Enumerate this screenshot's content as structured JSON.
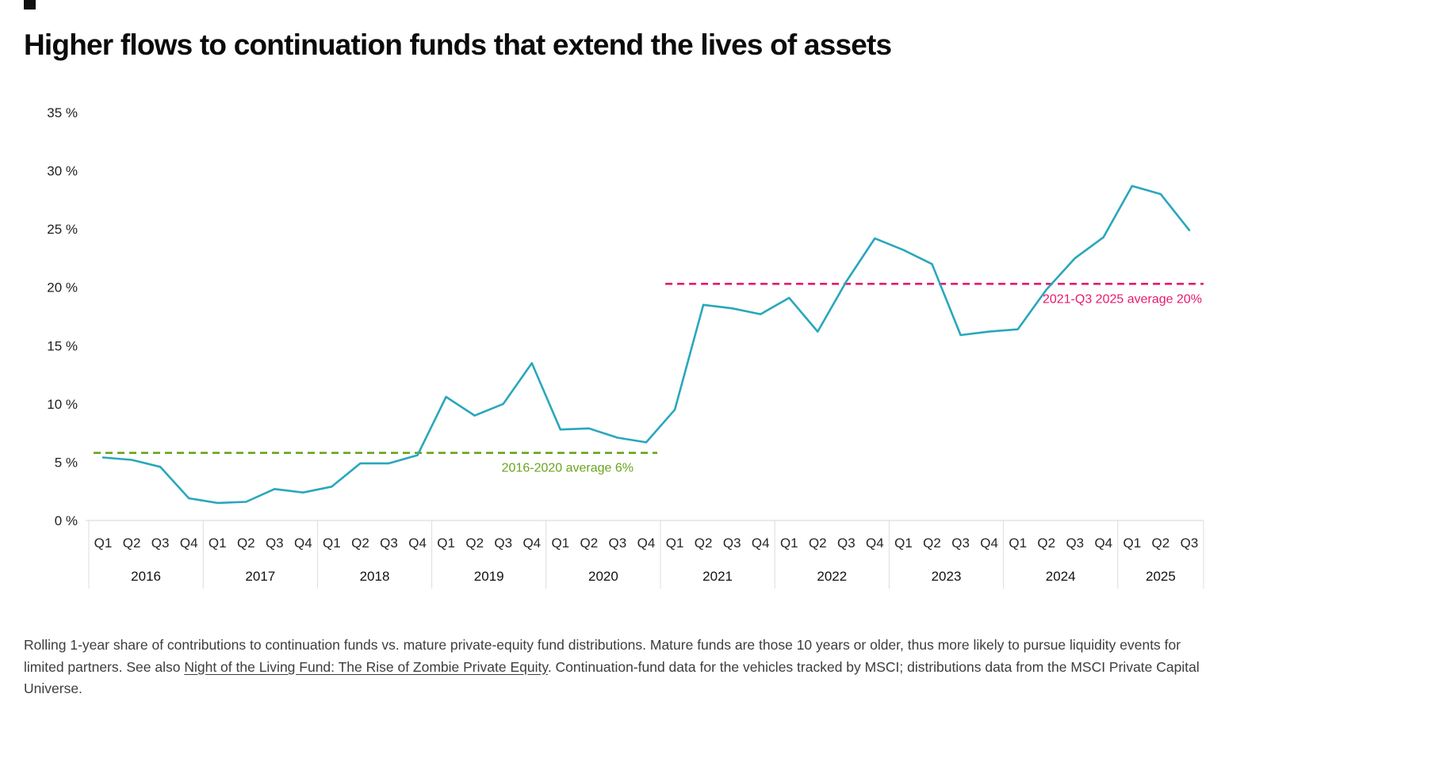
{
  "title": "Higher flows to continuation funds that extend the lives of assets",
  "chart_data": {
    "type": "line",
    "series_name": "Rolling 1-year share of contributions to continuation funds vs. mature fund distributions",
    "line_color": "#29a7bc",
    "ylim": [
      0,
      35
    ],
    "y_ticks": [
      "0 %",
      "5 %",
      "10 %",
      "15 %",
      "20 %",
      "25 %",
      "30 %",
      "35 %"
    ],
    "grid": "off",
    "years": [
      {
        "year": "2016",
        "quarters": [
          "Q1",
          "Q2",
          "Q3",
          "Q4"
        ]
      },
      {
        "year": "2017",
        "quarters": [
          "Q1",
          "Q2",
          "Q3",
          "Q4"
        ]
      },
      {
        "year": "2018",
        "quarters": [
          "Q1",
          "Q2",
          "Q3",
          "Q4"
        ]
      },
      {
        "year": "2019",
        "quarters": [
          "Q1",
          "Q2",
          "Q3",
          "Q4"
        ]
      },
      {
        "year": "2020",
        "quarters": [
          "Q1",
          "Q2",
          "Q3",
          "Q4"
        ]
      },
      {
        "year": "2021",
        "quarters": [
          "Q1",
          "Q2",
          "Q3",
          "Q4"
        ]
      },
      {
        "year": "2022",
        "quarters": [
          "Q1",
          "Q2",
          "Q3",
          "Q4"
        ]
      },
      {
        "year": "2023",
        "quarters": [
          "Q1",
          "Q2",
          "Q3",
          "Q4"
        ]
      },
      {
        "year": "2024",
        "quarters": [
          "Q1",
          "Q2",
          "Q3",
          "Q4"
        ]
      },
      {
        "year": "2025",
        "quarters": [
          "Q1",
          "Q2",
          "Q3"
        ]
      }
    ],
    "values": [
      5.4,
      5.2,
      4.6,
      1.9,
      1.5,
      1.6,
      2.7,
      2.4,
      2.9,
      4.9,
      4.9,
      5.6,
      10.6,
      9.0,
      10.0,
      13.5,
      7.8,
      7.9,
      7.1,
      6.7,
      9.5,
      18.5,
      18.2,
      17.7,
      19.1,
      16.2,
      20.5,
      24.2,
      23.2,
      22.0,
      15.9,
      16.2,
      16.4,
      19.8,
      22.5,
      24.3,
      28.7,
      28.0,
      24.9
    ],
    "averages": [
      {
        "label": "2016-2020 average 6%",
        "value": 5.8,
        "start_index": 0,
        "end_index": 19,
        "color": "#69a41d",
        "extend_to_right": false
      },
      {
        "label": "2021-Q3 2025 average 20%",
        "value": 20.3,
        "start_index": 20,
        "end_index": 38,
        "color": "#e8196e",
        "extend_to_right": true
      }
    ]
  },
  "footnote": {
    "text_before": "Rolling 1-year share of contributions to continuation funds vs. mature private-equity fund distributions. Mature funds are those 10 years or older, thus more likely to pursue liquidity events for limited partners. See also ",
    "link_text": "Night of the Living Fund: The Rise of Zombie Private Equity",
    "text_after": ". Continuation-fund data for the vehicles tracked by MSCI; distributions data from the MSCI Private Capital Universe."
  }
}
